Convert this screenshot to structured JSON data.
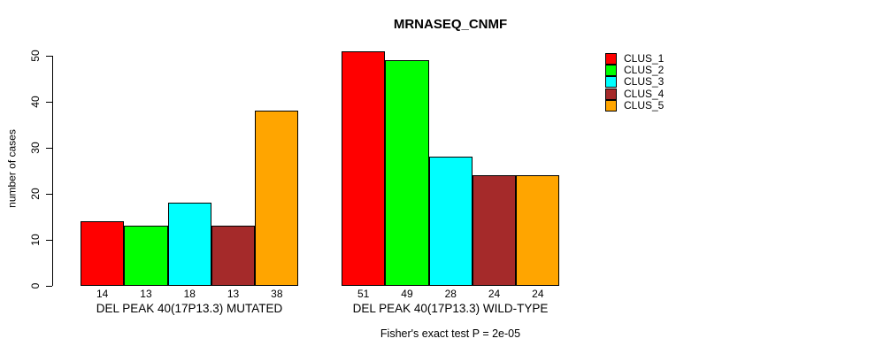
{
  "chart_data": {
    "type": "bar",
    "title": "MRNASEQ_CNMF",
    "ylabel": "number of cases",
    "xlabel": "",
    "ylim": [
      0,
      50
    ],
    "yticks": [
      0,
      10,
      20,
      30,
      40,
      50
    ],
    "grid": false,
    "caption": "Fisher's exact test P = 2e-05",
    "legend": {
      "position": "right",
      "entries": [
        {
          "label": "CLUS_1",
          "color": "#FF0000"
        },
        {
          "label": "CLUS_2",
          "color": "#00FF00"
        },
        {
          "label": "CLUS_3",
          "color": "#00FFFF"
        },
        {
          "label": "CLUS_4",
          "color": "#A52A2A"
        },
        {
          "label": "CLUS_5",
          "color": "#FFA500"
        }
      ]
    },
    "series_names": [
      "CLUS_1",
      "CLUS_2",
      "CLUS_3",
      "CLUS_4",
      "CLUS_5"
    ],
    "groups": [
      {
        "label": "DEL PEAK 40(17P13.3) MUTATED",
        "values": [
          14,
          13,
          18,
          13,
          38
        ]
      },
      {
        "label": "DEL PEAK 40(17P13.3) WILD-TYPE",
        "values": [
          51,
          49,
          28,
          24,
          24
        ]
      }
    ],
    "bar_value_labels_shown": true
  },
  "colors": {
    "background": "#FFFFFF",
    "axis": "#000000",
    "text": "#000000"
  }
}
